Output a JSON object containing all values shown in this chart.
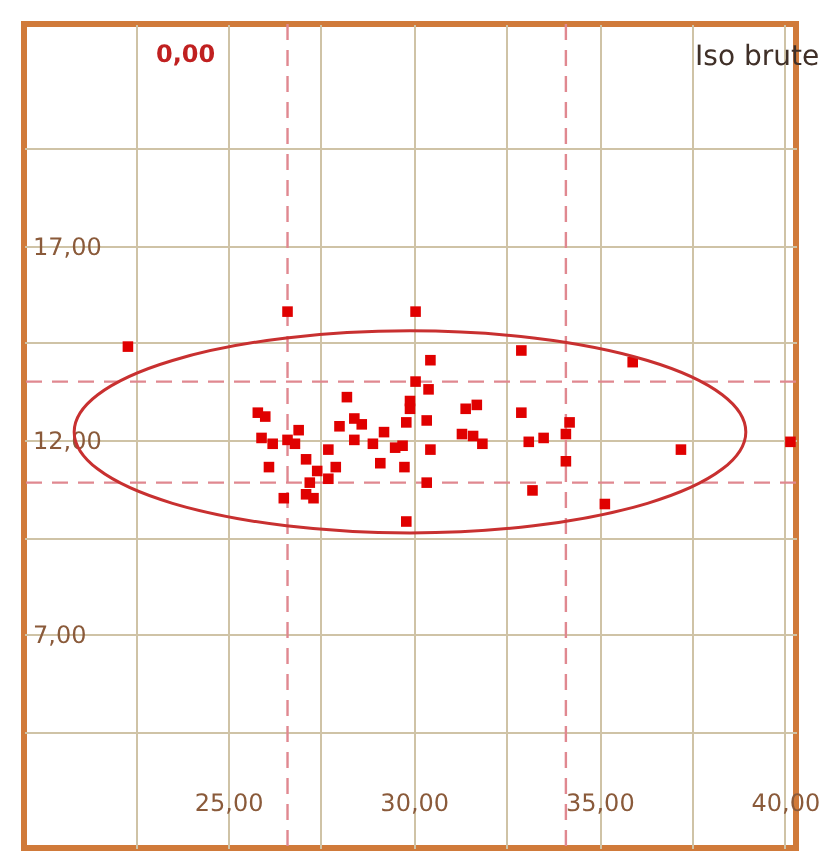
{
  "chart_data": {
    "type": "scatter",
    "title": "Iso brute",
    "annotations": [
      "0,00"
    ],
    "xlim": [
      19.5,
      40.3
    ],
    "ylim": [
      1.5,
      22.7
    ],
    "xticks": [
      {
        "value": 22.5,
        "label": null
      },
      {
        "value": 25,
        "label": "25,00"
      },
      {
        "value": 27.5,
        "label": null
      },
      {
        "value": 30,
        "label": "30,00"
      },
      {
        "value": 32.5,
        "label": null
      },
      {
        "value": 35,
        "label": "35,00"
      },
      {
        "value": 37.5,
        "label": null
      },
      {
        "value": 40,
        "label": "40,00"
      }
    ],
    "yticks": [
      {
        "value": 4.5,
        "label": null
      },
      {
        "value": 7,
        "label": "7,00"
      },
      {
        "value": 9.5,
        "label": null
      },
      {
        "value": 12,
        "label": "12,00"
      },
      {
        "value": 14.5,
        "label": null
      },
      {
        "value": 17,
        "label": "17,00"
      },
      {
        "value": 19.5,
        "label": null
      }
    ],
    "grid": true,
    "marker": "square",
    "ref_lines": [
      {
        "axis": "x",
        "value": 26.6,
        "color": "#e08890",
        "line_style": "dashed"
      },
      {
        "axis": "x",
        "value": 34.1,
        "color": "#e08890",
        "line_style": "dashed"
      },
      {
        "axis": "y",
        "value": 13.5,
        "color": "#e08890",
        "line_style": "dashed"
      },
      {
        "axis": "y",
        "value": 10.9,
        "color": "#e08890",
        "line_style": "dashed"
      }
    ],
    "series": [
      {
        "color": "#e00000",
        "x": [
          22.3,
          26.6,
          30.05,
          25.8,
          26.0,
          25.9,
          26.2,
          26.1,
          26.6,
          26.8,
          26.9,
          26.5,
          27.1,
          27.1,
          27.3,
          27.2,
          27.4,
          27.7,
          27.7,
          27.9,
          28.0,
          28.2,
          28.4,
          28.4,
          28.6,
          28.9,
          29.1,
          29.2,
          29.5,
          30.45,
          30.05,
          30.4,
          29.9,
          29.9,
          29.8,
          30.35,
          29.7,
          30.45,
          29.75,
          30.35,
          29.8,
          31.3,
          31.4,
          31.7,
          31.6,
          31.85,
          32.9,
          32.9,
          33.1,
          33.5,
          33.2,
          34.2,
          34.1,
          34.1,
          35.15,
          35.9,
          37.2,
          40.15
        ],
        "values": [
          14.4,
          15.3,
          15.3,
          12.7,
          12.6,
          12.05,
          11.9,
          11.3,
          12.0,
          11.9,
          12.25,
          10.5,
          11.5,
          10.6,
          10.5,
          10.9,
          11.2,
          11.0,
          11.75,
          11.3,
          12.35,
          13.1,
          12.0,
          12.55,
          12.4,
          11.9,
          11.4,
          12.2,
          11.8,
          14.05,
          13.5,
          13.3,
          13.0,
          12.8,
          12.45,
          12.5,
          11.85,
          11.75,
          11.3,
          10.9,
          9.9,
          12.15,
          12.8,
          12.9,
          12.1,
          11.9,
          14.3,
          12.7,
          11.95,
          12.05,
          10.7,
          12.45,
          12.15,
          11.45,
          10.35,
          14.0,
          11.75,
          11.95
        ]
      }
    ]
  }
}
